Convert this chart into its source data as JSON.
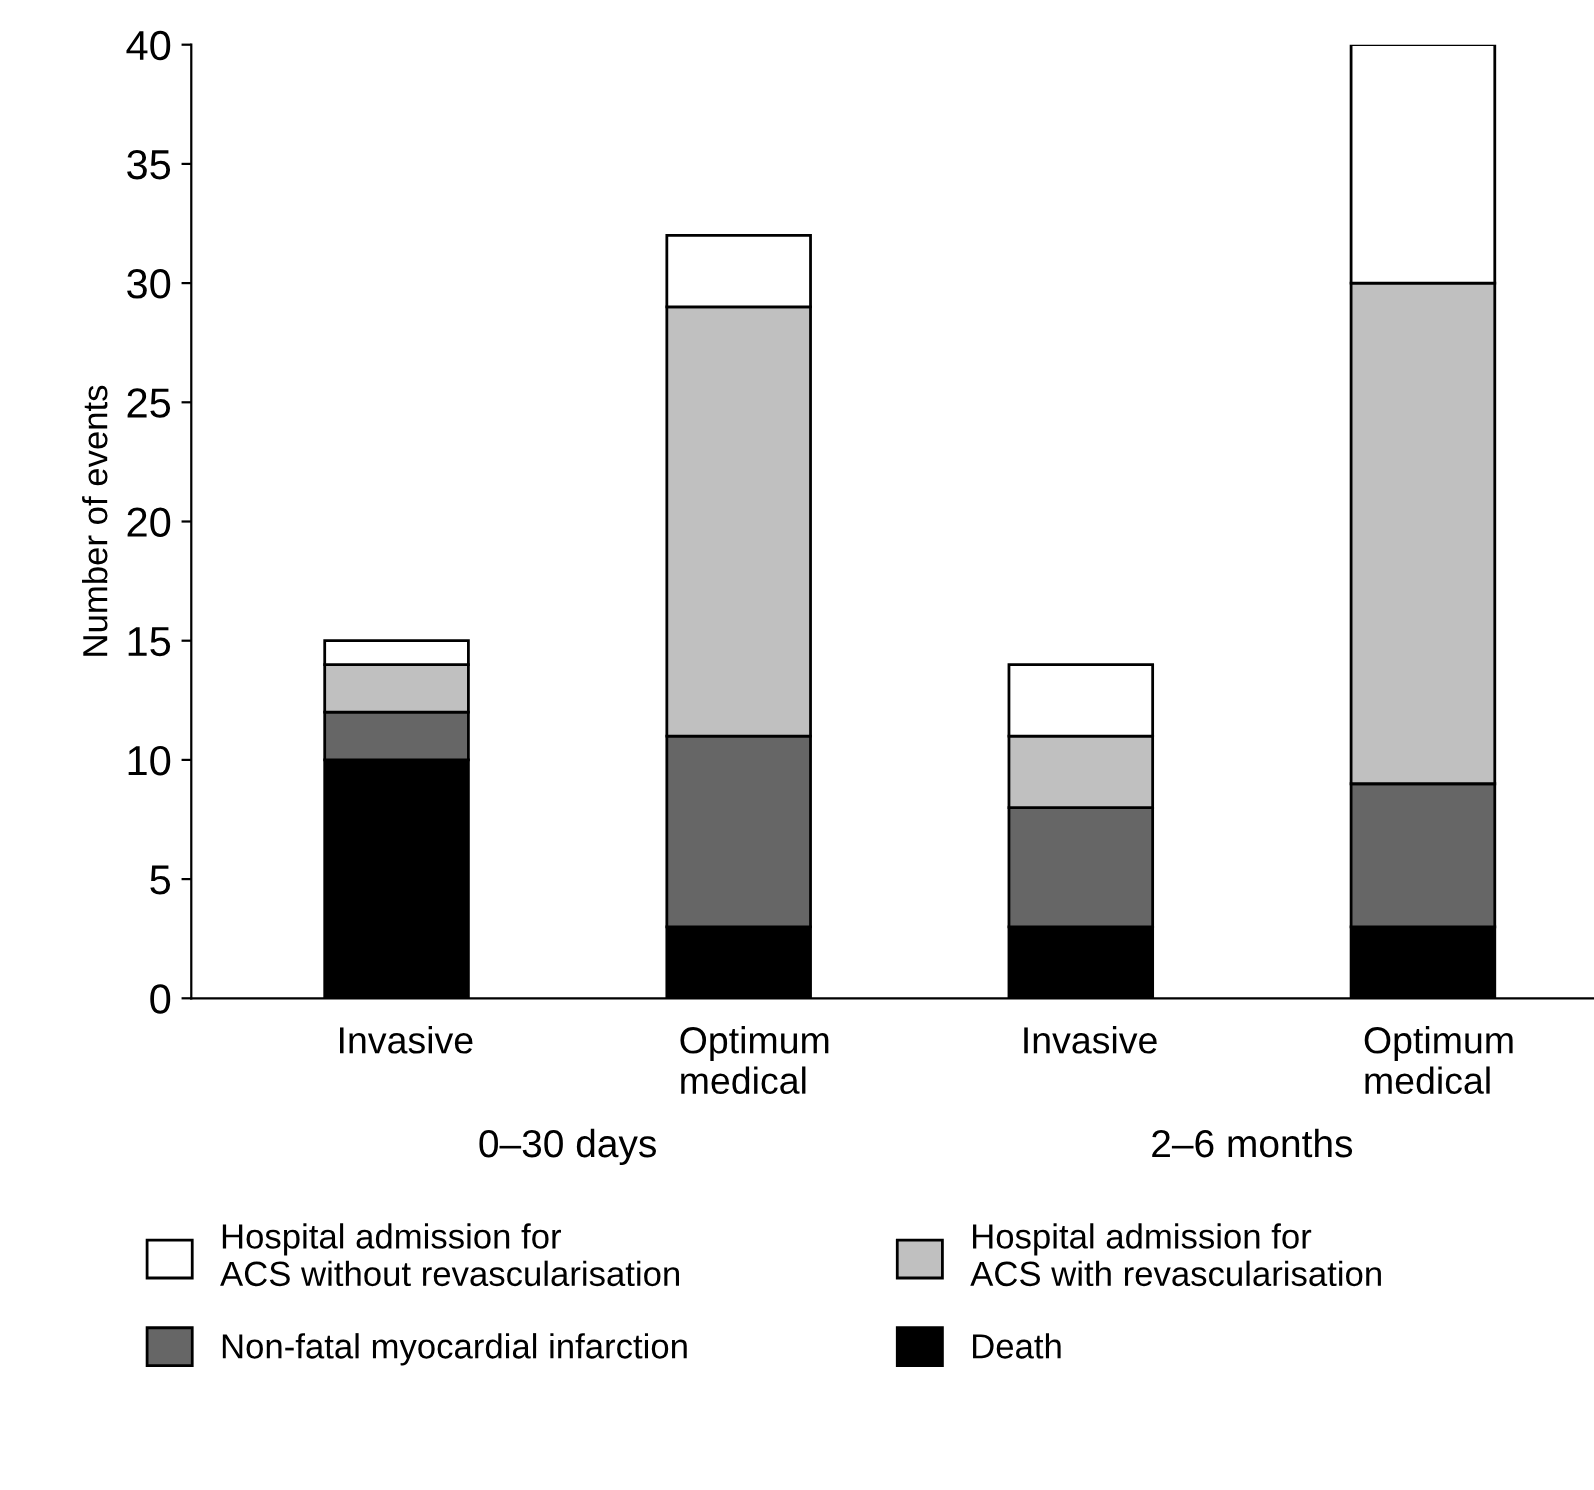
{
  "chart_data": {
    "type": "bar",
    "stacked": true,
    "ylabel": "Number of events",
    "categories": [
      "Invasive",
      "Optimum\nmedical",
      "Invasive",
      "Optimum\nmedical"
    ],
    "series": [
      {
        "name": "Death",
        "color": "#000000",
        "values": [
          10,
          3,
          3,
          3
        ]
      },
      {
        "name": "Non-fatal myocardial infarction",
        "color": "#666666",
        "values": [
          2,
          8,
          5,
          6
        ]
      },
      {
        "name": "Hospital admission for\nACS with revascularisation",
        "color": "#c0c0c0",
        "values": [
          2,
          18,
          3,
          21
        ]
      },
      {
        "name": "Hospital admission for\nACS without revascularisation",
        "color": "#ffffff",
        "values": [
          1,
          3,
          3,
          10
        ]
      }
    ],
    "annotations": [
      "0–30 days",
      "2–6 months"
    ],
    "ylim": [
      0,
      40
    ],
    "yticks": [
      0,
      5,
      10,
      15,
      20,
      25,
      30,
      35,
      40
    ],
    "grid": false,
    "legend": "bottom"
  }
}
